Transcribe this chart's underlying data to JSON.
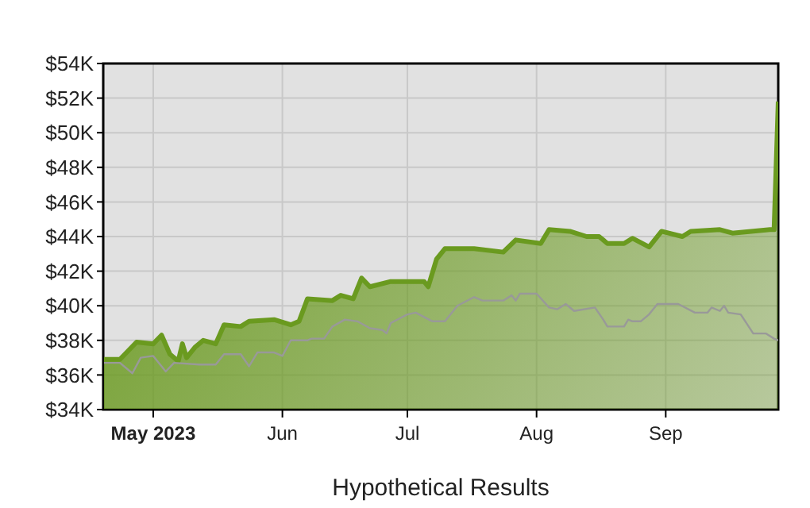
{
  "chart_data": {
    "type": "area",
    "xlabel": "Hypothetical Results",
    "xlim": [
      "2023-04-19",
      "2023-09-28"
    ],
    "xticks": [
      {
        "value": "2023-05-01",
        "label": "May 2023"
      },
      {
        "value": "2023-06-01",
        "label": "Jun"
      },
      {
        "value": "2023-07-01",
        "label": "Jul"
      },
      {
        "value": "2023-08-01",
        "label": "Aug"
      },
      {
        "value": "2023-09-01",
        "label": "Sep"
      }
    ],
    "ylim": [
      34000,
      54000
    ],
    "yticks": [
      {
        "value": 34000,
        "label": "$34K"
      },
      {
        "value": 36000,
        "label": "$36K"
      },
      {
        "value": 38000,
        "label": "$38K"
      },
      {
        "value": 40000,
        "label": "$40K"
      },
      {
        "value": 42000,
        "label": "$42K"
      },
      {
        "value": 44000,
        "label": "$44K"
      },
      {
        "value": 46000,
        "label": "$46K"
      },
      {
        "value": 48000,
        "label": "$48K"
      },
      {
        "value": 50000,
        "label": "$50K"
      },
      {
        "value": 52000,
        "label": "$52K"
      },
      {
        "value": 54000,
        "label": "$54K"
      }
    ],
    "grid": true,
    "legend": false,
    "series": [
      {
        "type": "area",
        "color": "#6a9a1f",
        "x": [
          "2023-04-19",
          "2023-04-23",
          "2023-04-27",
          "2023-05-01",
          "2023-05-03",
          "2023-05-05",
          "2023-05-07",
          "2023-05-08",
          "2023-05-09",
          "2023-05-11",
          "2023-05-13",
          "2023-05-16",
          "2023-05-18",
          "2023-05-22",
          "2023-05-24",
          "2023-05-30",
          "2023-06-03",
          "2023-06-05",
          "2023-06-07",
          "2023-06-13",
          "2023-06-15",
          "2023-06-18",
          "2023-06-20",
          "2023-06-22",
          "2023-06-27",
          "2023-07-02",
          "2023-07-05",
          "2023-07-06",
          "2023-07-08",
          "2023-07-10",
          "2023-07-17",
          "2023-07-24",
          "2023-07-27",
          "2023-08-02",
          "2023-08-04",
          "2023-08-09",
          "2023-08-13",
          "2023-08-16",
          "2023-08-18",
          "2023-08-22",
          "2023-08-24",
          "2023-08-28",
          "2023-08-31",
          "2023-09-05",
          "2023-09-07",
          "2023-09-14",
          "2023-09-17",
          "2023-09-26",
          "2023-09-27",
          "2023-09-28"
        ],
        "values": [
          36900,
          36900,
          37900,
          37800,
          38300,
          37200,
          36800,
          37800,
          37000,
          37600,
          38000,
          37800,
          38900,
          38800,
          39100,
          39200,
          38900,
          39100,
          40400,
          40300,
          40600,
          40400,
          41600,
          41100,
          41400,
          41400,
          41400,
          41100,
          42700,
          43300,
          43300,
          43100,
          43800,
          43600,
          44400,
          44300,
          44000,
          44000,
          43600,
          43600,
          43900,
          43400,
          44300,
          44000,
          44300,
          44400,
          44200,
          44400,
          44400,
          51800
        ]
      },
      {
        "type": "line",
        "color": "#999999",
        "x": [
          "2023-04-19",
          "2023-04-23",
          "2023-04-26",
          "2023-04-28",
          "2023-05-01",
          "2023-05-04",
          "2023-05-06",
          "2023-05-12",
          "2023-05-16",
          "2023-05-18",
          "2023-05-22",
          "2023-05-24",
          "2023-05-26",
          "2023-05-30",
          "2023-06-01",
          "2023-06-03",
          "2023-06-07",
          "2023-06-08",
          "2023-06-11",
          "2023-06-13",
          "2023-06-16",
          "2023-06-19",
          "2023-06-22",
          "2023-06-25",
          "2023-06-26",
          "2023-06-27",
          "2023-07-01",
          "2023-07-03",
          "2023-07-07",
          "2023-07-10",
          "2023-07-13",
          "2023-07-17",
          "2023-07-19",
          "2023-07-24",
          "2023-07-26",
          "2023-07-27",
          "2023-07-28",
          "2023-08-01",
          "2023-08-04",
          "2023-08-06",
          "2023-08-08",
          "2023-08-10",
          "2023-08-15",
          "2023-08-17",
          "2023-08-18",
          "2023-08-22",
          "2023-08-23",
          "2023-08-24",
          "2023-08-26",
          "2023-08-28",
          "2023-08-30",
          "2023-09-04",
          "2023-09-08",
          "2023-09-11",
          "2023-09-12",
          "2023-09-14",
          "2023-09-15",
          "2023-09-16",
          "2023-09-19",
          "2023-09-22",
          "2023-09-25",
          "2023-09-27",
          "2023-09-28"
        ],
        "values": [
          36700,
          36700,
          36100,
          37000,
          37100,
          36200,
          36700,
          36600,
          36600,
          37200,
          37200,
          36500,
          37300,
          37300,
          37100,
          38000,
          38000,
          38100,
          38100,
          38800,
          39200,
          39100,
          38700,
          38600,
          38400,
          39000,
          39500,
          39600,
          39100,
          39100,
          40000,
          40500,
          40300,
          40300,
          40600,
          40300,
          40700,
          40700,
          39900,
          39800,
          40100,
          39700,
          39900,
          39200,
          38800,
          38800,
          39200,
          39100,
          39100,
          39500,
          40100,
          40100,
          39600,
          39600,
          39900,
          39700,
          40000,
          39600,
          39500,
          38400,
          38400,
          38100,
          38000
        ]
      }
    ]
  }
}
